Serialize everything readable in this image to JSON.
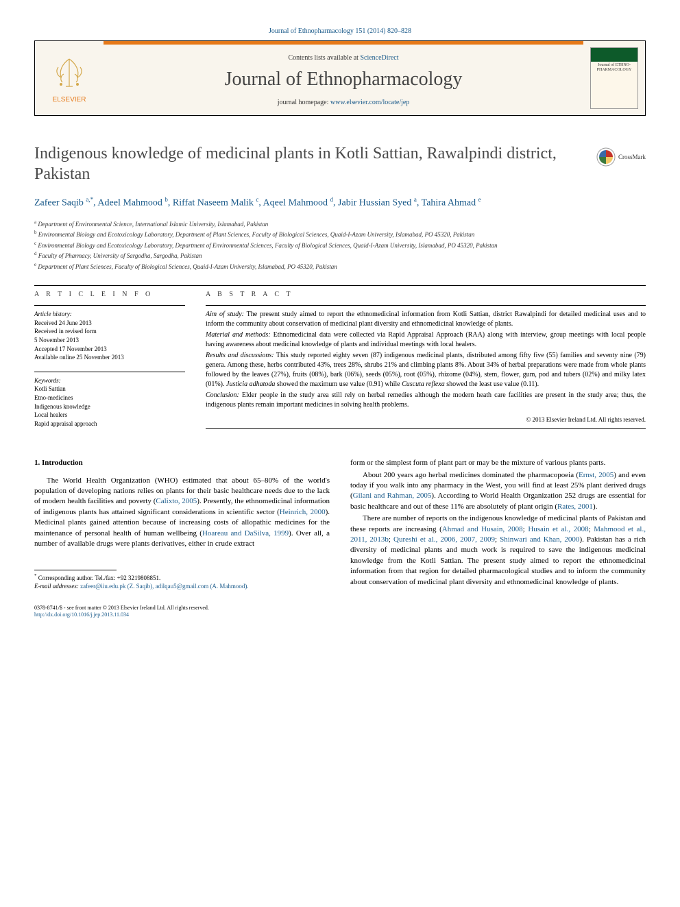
{
  "top_link": "Journal of Ethnopharmacology 151 (2014) 820–828",
  "header": {
    "contents_prefix": "Contents lists available at ",
    "contents_link": "ScienceDirect",
    "journal_name": "Journal of Ethnopharmacology",
    "homepage_prefix": "journal homepage: ",
    "homepage_link": "www.elsevier.com/locate/jep",
    "publisher": "ELSEVIER",
    "cover_text": "Journal of ETHNO-PHARMACOLOGY"
  },
  "crossmark": "CrossMark",
  "article": {
    "title": "Indigenous knowledge of medicinal plants in Kotli Sattian, Rawalpindi district, Pakistan",
    "authors_html": "Zafeer Saqib <sup>a,*</sup>, Adeel Mahmood <sup>b</sup>, Riffat Naseem Malik <sup>c</sup>, Aqeel Mahmood <sup>d</sup>, Jabir Hussian Syed <sup>a</sup>, Tahira Ahmad <sup>e</sup>"
  },
  "affiliations": [
    {
      "sup": "a",
      "text": "Department of Environmental Science, International Islamic University, Islamabad, Pakistan"
    },
    {
      "sup": "b",
      "text": "Environmental Biology and Ecotoxicology Laboratory, Department of Plant Sciences, Faculty of Biological Sciences, Quaid-I-Azam University, Islamabad, PO 45320, Pakistan"
    },
    {
      "sup": "c",
      "text": "Environmental Biology and Ecotoxicology Laboratory, Department of Environmental Sciences, Faculty of Biological Sciences, Quaid-I-Azam University, Islamabad, PO 45320, Pakistan"
    },
    {
      "sup": "d",
      "text": "Faculty of Pharmacy, University of Sargodha, Sargodha, Pakistan"
    },
    {
      "sup": "e",
      "text": "Department of Plant Sciences, Faculty of Biological Sciences, Quaid-I-Azam University, Islamabad, PO 45320, Pakistan"
    }
  ],
  "meta": {
    "info_heading": "A R T I C L E  I N F O",
    "history_label": "Article history:",
    "history": [
      "Received 24 June 2013",
      "Received in revised form",
      "5 November 2013",
      "Accepted 17 November 2013",
      "Available online 25 November 2013"
    ],
    "keywords_label": "Keywords:",
    "keywords": [
      "Kotli Sattian",
      "Etno-medicines",
      "Indigenous knowledge",
      "Local healers",
      "Rapid appraisal approach"
    ]
  },
  "abstract": {
    "heading": "A B S T R A C T",
    "paragraphs": [
      {
        "lead": "Aim of study:",
        "text": " The present study aimed to report the ethnomedicinal information from Kotli Sattian, district Rawalpindi for detailed medicinal uses and to inform the community about conservation of medicinal plant diversity and ethnomedicinal knowledge of plants."
      },
      {
        "lead": "Material and methods:",
        "text": " Ethnomedicinal data were collected via Rapid Appraisal Approach (RAA) along with interview, group meetings with local people having awareness about medicinal knowledge of plants and individual meetings with local healers."
      },
      {
        "lead": "Results and discussions:",
        "text": " This study reported eighty seven (87) indigenous medicinal plants, distributed among fifty five (55) families and seventy nine (79) genera. Among these, herbs contributed 43%, trees 28%, shrubs 21% and climbing plants 8%. About 34% of herbal preparations were made from whole plants followed by the leaves (27%), fruits (08%), bark (06%), seeds (05%), root (05%), rhizome (04%), stem, flower, gum, pod and tubers (02%) and milky latex (01%). ",
        "species1": "Justicia adhatoda",
        "afterSpecies1": " showed the maximum use value (0.91) while ",
        "species2": "Cuscuta reflexa",
        "afterSpecies2": " showed the least use value (0.11)."
      },
      {
        "lead": "Conclusion:",
        "text": " Elder people in the study area still rely on herbal remedies although the modern heath care facilities are present in the study area; thus, the indigenous plants remain important medicines in solving health problems."
      }
    ],
    "copyright": "© 2013 Elsevier Ireland Ltd. All rights reserved."
  },
  "intro": {
    "heading": "1.  Introduction",
    "left": [
      {
        "text_before": "The World Health Organization (WHO) estimated that about 65–80% of the world's population of developing nations relies on plants for their basic healthcare needs due to the lack of modern health facilities and poverty (",
        "cite": "Calixto, 2005",
        "text_after": "). Presently, the ethnomedicinal information of indigenous plants has attained significant considerations in scientific sector (",
        "cite2": "Heinrich, 2000",
        "text_after2": "). Medicinal plants gained attention because of increasing costs of allopathic medicines for the maintenance of personal health of human wellbeing (",
        "cite3": "Hoareau and DaSilva, 1999",
        "text_after3": "). Over all, a number of available drugs were plants derivatives, either in crude extract"
      }
    ],
    "right": [
      {
        "plain": "form or the simplest form of plant part or may be the mixture of various plants parts."
      },
      {
        "text_before": "About 200 years ago herbal medicines dominated the pharmacopoeia (",
        "cite": "Ernst, 2005",
        "text_after": ") and even today if you walk into any pharmacy in the West, you will find at least 25% plant derived drugs (",
        "cite2": "Gilani and Rahman, 2005",
        "text_after2": "). According to World Health Organization 252 drugs are essential for basic healthcare and out of these 11% are absolutely of plant origin (",
        "cite3": "Rates, 2001",
        "text_after3": ")."
      },
      {
        "text_before": "There are number of reports on the indigenous knowledge of medicinal plants of Pakistan and these reports are increasing (",
        "cite": "Ahmad and Husain, 2008",
        "text_after": "; ",
        "cite2": "Husain et al., 2008",
        "text_after2": "; ",
        "cite3": "Mahmood et al., 2011, 2013b",
        "text_after3": "; ",
        "cite4": "Qureshi et al., 2006, 2007, 2009",
        "text_after4": "; ",
        "cite5": "Shinwari and Khan, 2000",
        "text_after5": "). Pakistan has a rich diversity of medicinal plants and much work is required to save the indigenous medicinal knowledge from the Kotli Sattian. The present study aimed to report the ethnomedicinal information from that region for detailed pharmacological studies and to inform the community about conservation of medicinal plant diversity and ethnomedicinal knowledge of plants."
      }
    ]
  },
  "footnote": {
    "corr": "Corresponding author. Tel./fax: +92 3219808851.",
    "email_label": "E-mail addresses: ",
    "emails": "zafeer@iiu.edu.pk (Z. Saqib), adilqau5@gmail.com (A. Mahmood)."
  },
  "bottom": {
    "issn": "0378-8741/$ - see front matter © 2013 Elsevier Ireland Ltd. All rights reserved.",
    "doi": "http://dx.doi.org/10.1016/j.jep.2013.11.034"
  },
  "colors": {
    "orange": "#e67817",
    "link": "#1a5a8a",
    "green": "#0d5a2a"
  }
}
